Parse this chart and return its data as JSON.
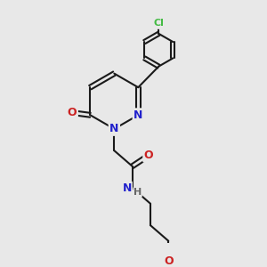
{
  "bg_color": "#e8e8e8",
  "bond_color": "#1a1a1a",
  "bond_width": 1.5,
  "atom_colors": {
    "N": "#2222cc",
    "O": "#cc2222",
    "Cl": "#44bb44",
    "H": "#666666",
    "C": "#1a1a1a"
  },
  "font_size": 9,
  "font_size_small": 8
}
